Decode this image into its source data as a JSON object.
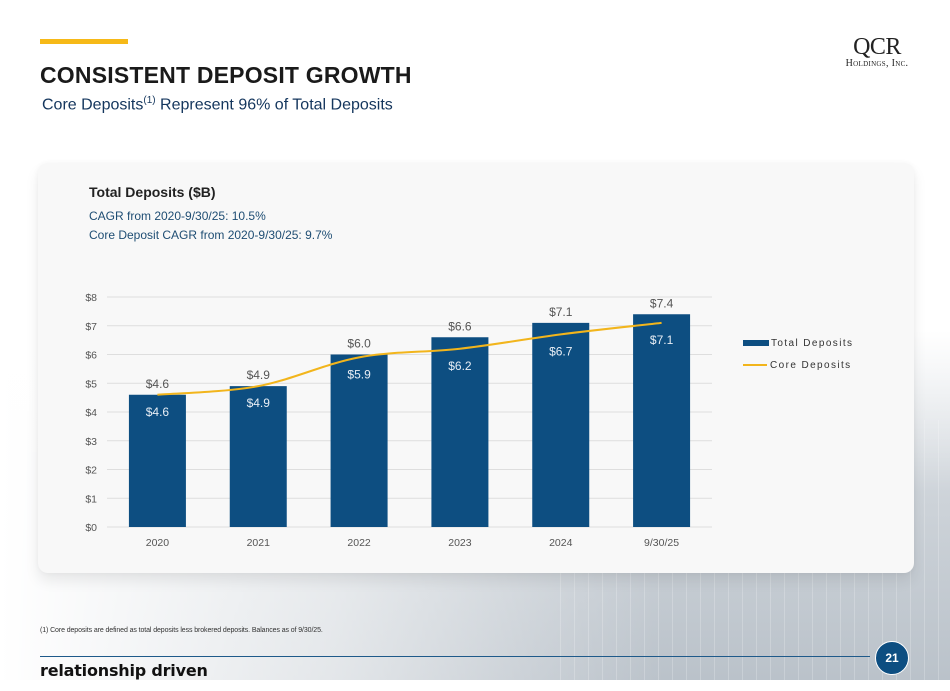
{
  "header": {
    "title": "CONSISTENT DEPOSIT GROWTH",
    "subtitle_pre": "Core Deposits",
    "subtitle_sup": "(1)",
    "subtitle_post": " Represent 96% of Total Deposits"
  },
  "logo": {
    "main": "QCR",
    "sub": "Holdings, Inc."
  },
  "card": {
    "title": "Total Deposits ($B)",
    "cagr_total": "CAGR from 2020-9/30/25: 10.5%",
    "cagr_core": "Core Deposit CAGR from  2020-9/30/25: 9.7%"
  },
  "colors": {
    "accent": "#f6b918",
    "bar": "#0d4e81",
    "line": "#f2b51c"
  },
  "chart_data": {
    "type": "bar",
    "title": "Total Deposits ($B)",
    "xlabel": "",
    "ylabel": "",
    "categories": [
      "2020",
      "2021",
      "2022",
      "2023",
      "2024",
      "9/30/25"
    ],
    "series": [
      {
        "name": "Total Deposits",
        "kind": "bar",
        "values": [
          4.6,
          4.9,
          6.0,
          6.6,
          7.1,
          7.4
        ],
        "labels": [
          "$4.6",
          "$4.9",
          "$6.0",
          "$6.6",
          "$7.1",
          "$7.4"
        ]
      },
      {
        "name": "Core Deposits",
        "kind": "line",
        "values": [
          4.6,
          4.9,
          5.9,
          6.2,
          6.7,
          7.1
        ],
        "labels": [
          "$4.6",
          "$4.9",
          "$5.9",
          "$6.2",
          "$6.7",
          "$7.1"
        ]
      }
    ],
    "ylim": [
      0,
      8
    ],
    "yticks": [
      0,
      1,
      2,
      3,
      4,
      5,
      6,
      7,
      8
    ],
    "ytick_labels": [
      "$0",
      "$1",
      "$2",
      "$3",
      "$4",
      "$5",
      "$6",
      "$7",
      "$8"
    ],
    "grid": true,
    "legend": "right"
  },
  "legend": {
    "items": [
      "Total Deposits",
      "Core Deposits"
    ]
  },
  "footer": {
    "footnote": "(1) Core deposits are defined as total deposits less brokered deposits. Balances as of 9/30/25.",
    "tagline": "relationship driven",
    "page_number": "21"
  }
}
